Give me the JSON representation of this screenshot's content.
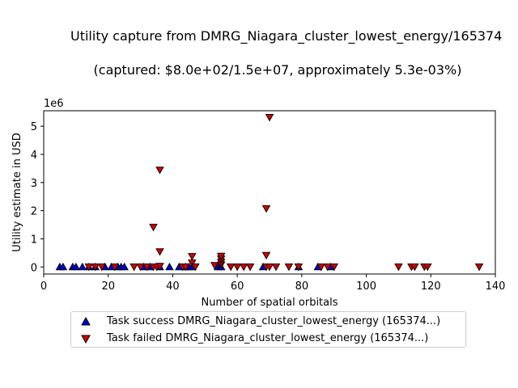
{
  "chart_data": {
    "type": "scatter",
    "title": "Utility capture from DMRG_Niagara_cluster_lowest_energy/165374",
    "subtitle": "(captured: $8.0e+02/1.5e+07, approximately 5.3e-03%)",
    "xlabel": "Number of spatial orbitals",
    "ylabel": "Utility estimate in USD",
    "y_offset_text": "1e6",
    "xlim": [
      0,
      140
    ],
    "ylim": [
      -250000,
      5550000
    ],
    "xticks": [
      0,
      20,
      40,
      60,
      80,
      100,
      120,
      140
    ],
    "yticks": [
      0,
      1,
      2,
      3,
      4,
      5
    ],
    "ytick_scale": 1000000,
    "grid": false,
    "legend_placement": "below plot",
    "series": [
      {
        "name": "Task success DMRG_Niagara_cluster_lowest_energy (165374...)",
        "marker": "triangle-up",
        "color": "#0000cc",
        "x": [
          5,
          6,
          9,
          10,
          12,
          14,
          16,
          19,
          21,
          23,
          24,
          25,
          31,
          33,
          36,
          39,
          42,
          44,
          45,
          46,
          54,
          55,
          68,
          79,
          85,
          89
        ],
        "y": [
          0,
          0,
          0,
          0,
          0,
          0,
          0,
          0,
          0,
          0,
          0,
          0,
          0,
          0,
          0,
          0,
          0,
          0,
          0,
          0,
          0,
          0,
          0,
          0,
          0,
          0
        ]
      },
      {
        "name": "Task failed DMRG_Niagara_cluster_lowest_energy (165374...)",
        "marker": "triangle-down",
        "color": "#cc0000",
        "x": [
          14,
          16,
          18,
          22,
          28,
          30,
          32,
          34,
          35,
          36,
          36,
          36,
          34,
          43,
          44,
          46,
          46,
          47,
          53,
          55,
          55,
          55,
          55,
          58,
          60,
          62,
          64,
          69,
          69,
          69,
          70,
          70,
          72,
          76,
          79,
          86,
          88,
          90,
          110,
          114,
          115,
          118,
          119,
          135
        ],
        "y": [
          10000,
          10000,
          10000,
          10000,
          10000,
          10000,
          10000,
          10000,
          10000,
          30000,
          550000,
          3450000,
          1420000,
          10000,
          10000,
          150000,
          380000,
          10000,
          60000,
          80000,
          180000,
          290000,
          390000,
          10000,
          10000,
          10000,
          10000,
          10000,
          420000,
          2080000,
          5320000,
          10000,
          10000,
          10000,
          10000,
          10000,
          10000,
          10000,
          10000,
          10000,
          10000,
          10000,
          10000,
          10000
        ]
      }
    ]
  }
}
